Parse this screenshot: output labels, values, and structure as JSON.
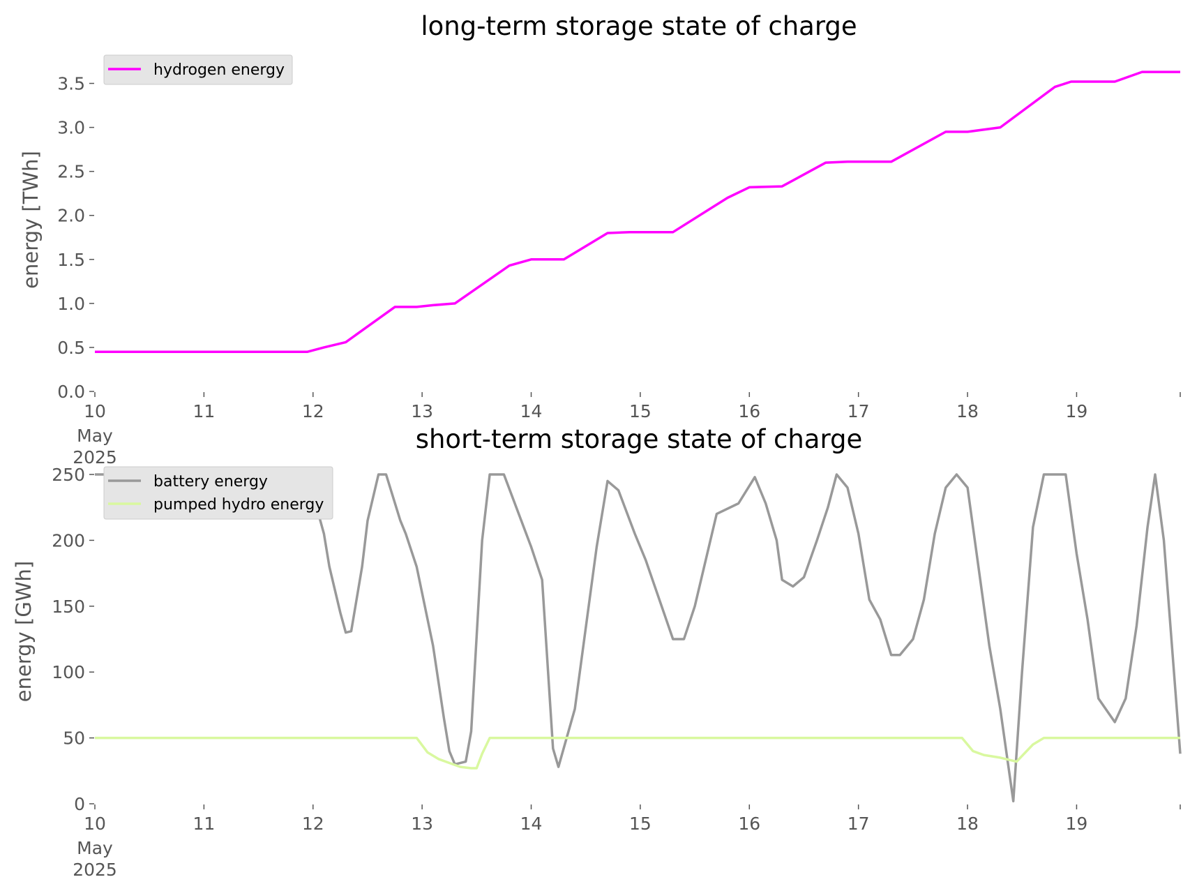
{
  "chart_data": [
    {
      "type": "line",
      "title": "long-term storage state of charge",
      "xlabel": "",
      "ylabel": "energy [TWh]",
      "x_unit": "day of May 2025",
      "xlim": [
        10,
        19.95
      ],
      "ylim": [
        0,
        3.75
      ],
      "yticks": [
        "0.0",
        "0.5",
        "1.0",
        "1.5",
        "2.0",
        "2.5",
        "3.0",
        "3.5"
      ],
      "ytick_values": [
        0,
        0.5,
        1.0,
        1.5,
        2.0,
        2.5,
        3.0,
        3.5
      ],
      "xticks": [
        "10",
        "11",
        "12",
        "13",
        "14",
        "15",
        "16",
        "17",
        "18",
        "19"
      ],
      "xtick_values": [
        10,
        11,
        12,
        13,
        14,
        15,
        16,
        17,
        18,
        19
      ],
      "first_tick_sublabels": [
        "May",
        "2025"
      ],
      "grid": false,
      "legend": "top-left",
      "series": [
        {
          "name": "hydrogen energy",
          "color": "#ff00ff",
          "x": [
            10,
            11.95,
            12.1,
            12.3,
            12.75,
            12.95,
            13.1,
            13.3,
            13.8,
            14.0,
            14.3,
            14.7,
            14.9,
            15.3,
            15.8,
            16.0,
            16.3,
            16.7,
            16.9,
            17.3,
            17.8,
            18.0,
            18.3,
            18.8,
            18.95,
            19.35,
            19.6,
            19.95
          ],
          "y": [
            0.45,
            0.45,
            0.5,
            0.56,
            0.96,
            0.96,
            0.98,
            1.0,
            1.43,
            1.5,
            1.5,
            1.8,
            1.81,
            1.81,
            2.2,
            2.32,
            2.33,
            2.6,
            2.61,
            2.61,
            2.95,
            2.95,
            3.0,
            3.46,
            3.52,
            3.52,
            3.63,
            3.63
          ]
        }
      ]
    },
    {
      "type": "line",
      "title": "short-term storage state of charge",
      "xlabel": "",
      "ylabel": "energy [GWh]",
      "x_unit": "day of May 2025",
      "xlim": [
        10,
        19.95
      ],
      "ylim": [
        0,
        250
      ],
      "yticks": [
        "0",
        "50",
        "100",
        "150",
        "200",
        "250"
      ],
      "ytick_values": [
        0,
        50,
        100,
        150,
        200,
        250
      ],
      "xticks": [
        "10",
        "11",
        "12",
        "13",
        "14",
        "15",
        "16",
        "17",
        "18",
        "19"
      ],
      "xtick_values": [
        10,
        11,
        12,
        13,
        14,
        15,
        16,
        17,
        18,
        19
      ],
      "first_tick_sublabels": [
        "May",
        "2025"
      ],
      "grid": false,
      "legend": "top-left",
      "series": [
        {
          "name": "battery energy",
          "color": "#999999",
          "x": [
            10,
            11.95,
            12.1,
            12.15,
            12.25,
            12.3,
            12.35,
            12.45,
            12.5,
            12.6,
            12.67,
            12.8,
            12.85,
            12.95,
            13.1,
            13.2,
            13.25,
            13.3,
            13.4,
            13.45,
            13.55,
            13.62,
            13.65,
            13.75,
            14.0,
            14.1,
            14.2,
            14.25,
            14.4,
            14.6,
            14.7,
            14.8,
            14.95,
            15.05,
            15.3,
            15.4,
            15.5,
            15.7,
            15.9,
            16.05,
            16.15,
            16.25,
            16.3,
            16.4,
            16.5,
            16.62,
            16.72,
            16.8,
            16.9,
            17.0,
            17.1,
            17.2,
            17.3,
            17.38,
            17.5,
            17.6,
            17.7,
            17.8,
            17.9,
            18.0,
            18.1,
            18.2,
            18.3,
            18.42,
            18.5,
            18.6,
            18.7,
            18.8,
            18.9,
            19.0,
            19.1,
            19.2,
            19.35,
            19.45,
            19.55,
            19.65,
            19.72,
            19.8,
            19.95
          ],
          "y": [
            250,
            250,
            205,
            180,
            145,
            130,
            131,
            180,
            215,
            250,
            250,
            215,
            205,
            180,
            120,
            65,
            40,
            30,
            32,
            55,
            200,
            250,
            250,
            250,
            195,
            170,
            42,
            28,
            72,
            195,
            245,
            238,
            205,
            185,
            125,
            125,
            150,
            220,
            228,
            248,
            228,
            200,
            170,
            165,
            172,
            200,
            225,
            250,
            240,
            205,
            155,
            140,
            113,
            113,
            125,
            155,
            205,
            240,
            250,
            240,
            180,
            120,
            72,
            2,
            100,
            210,
            250,
            250,
            250,
            190,
            140,
            80,
            62,
            80,
            135,
            210,
            250,
            200,
            38
          ]
        },
        {
          "name": "pumped hydro energy",
          "color": "#d9f89f",
          "x": [
            10,
            12.95,
            13.05,
            13.15,
            13.25,
            13.35,
            13.45,
            13.5,
            13.55,
            13.62,
            17.95,
            18.05,
            18.15,
            18.3,
            18.45,
            18.6,
            18.7,
            19.95
          ],
          "y": [
            50,
            50,
            39,
            34,
            31,
            28,
            27,
            27,
            38,
            50,
            50,
            40,
            37,
            35,
            32,
            45,
            50,
            50
          ]
        }
      ]
    }
  ]
}
